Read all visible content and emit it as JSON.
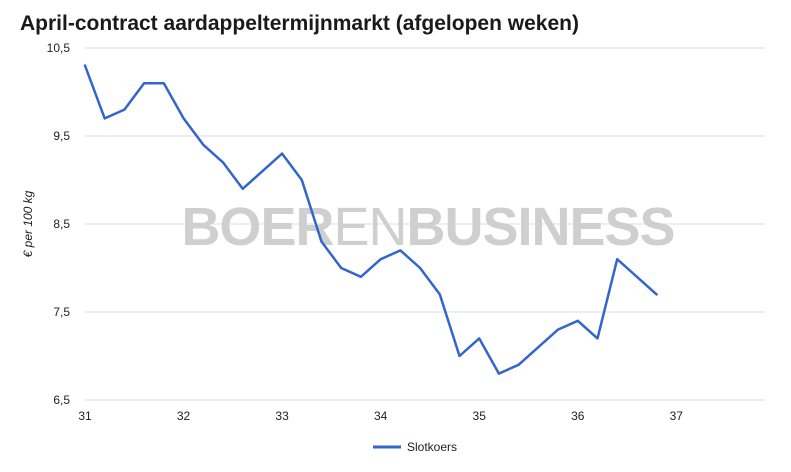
{
  "chart_data": {
    "type": "line",
    "title": "April-contract aardappeltermijnmarkt (afgelopen weken)",
    "ylabel": "€ per 100 kg",
    "xlabel": "",
    "watermark": {
      "part1": "BOER",
      "part2": "EN",
      "part3": "BUSINESS"
    },
    "xlim": [
      31,
      37.9
    ],
    "ylim": [
      6.5,
      10.5
    ],
    "x_ticks": [
      {
        "value": 31,
        "label": "31"
      },
      {
        "value": 32,
        "label": "32"
      },
      {
        "value": 33,
        "label": "33"
      },
      {
        "value": 34,
        "label": "34"
      },
      {
        "value": 35,
        "label": "35"
      },
      {
        "value": 36,
        "label": "36"
      },
      {
        "value": 37,
        "label": "37"
      }
    ],
    "y_ticks": [
      {
        "value": 6.5,
        "label": "6,5"
      },
      {
        "value": 7.5,
        "label": "7,5"
      },
      {
        "value": 8.5,
        "label": "8,5"
      },
      {
        "value": 9.5,
        "label": "9,5"
      },
      {
        "value": 10.5,
        "label": "10,5"
      }
    ],
    "grid": true,
    "legend_position": "bottom",
    "series": [
      {
        "name": "Slotkoers",
        "color": "#3366cc",
        "x": [
          31.0,
          31.2,
          31.4,
          31.6,
          31.8,
          32.0,
          32.2,
          32.4,
          32.6,
          32.8,
          33.0,
          33.2,
          33.4,
          33.6,
          33.8,
          34.0,
          34.2,
          34.4,
          34.6,
          34.8,
          35.0,
          35.2,
          35.4,
          35.6,
          35.8,
          36.0,
          36.2,
          36.4,
          36.6,
          36.8
        ],
        "y": [
          10.3,
          9.7,
          9.8,
          10.1,
          10.1,
          9.7,
          9.4,
          9.2,
          8.9,
          9.1,
          9.3,
          9.0,
          8.3,
          8.0,
          7.9,
          8.1,
          8.2,
          8.0,
          7.7,
          7.0,
          7.2,
          6.8,
          6.9,
          7.1,
          7.3,
          7.4,
          7.2,
          8.1,
          7.9,
          7.7
        ]
      }
    ]
  }
}
